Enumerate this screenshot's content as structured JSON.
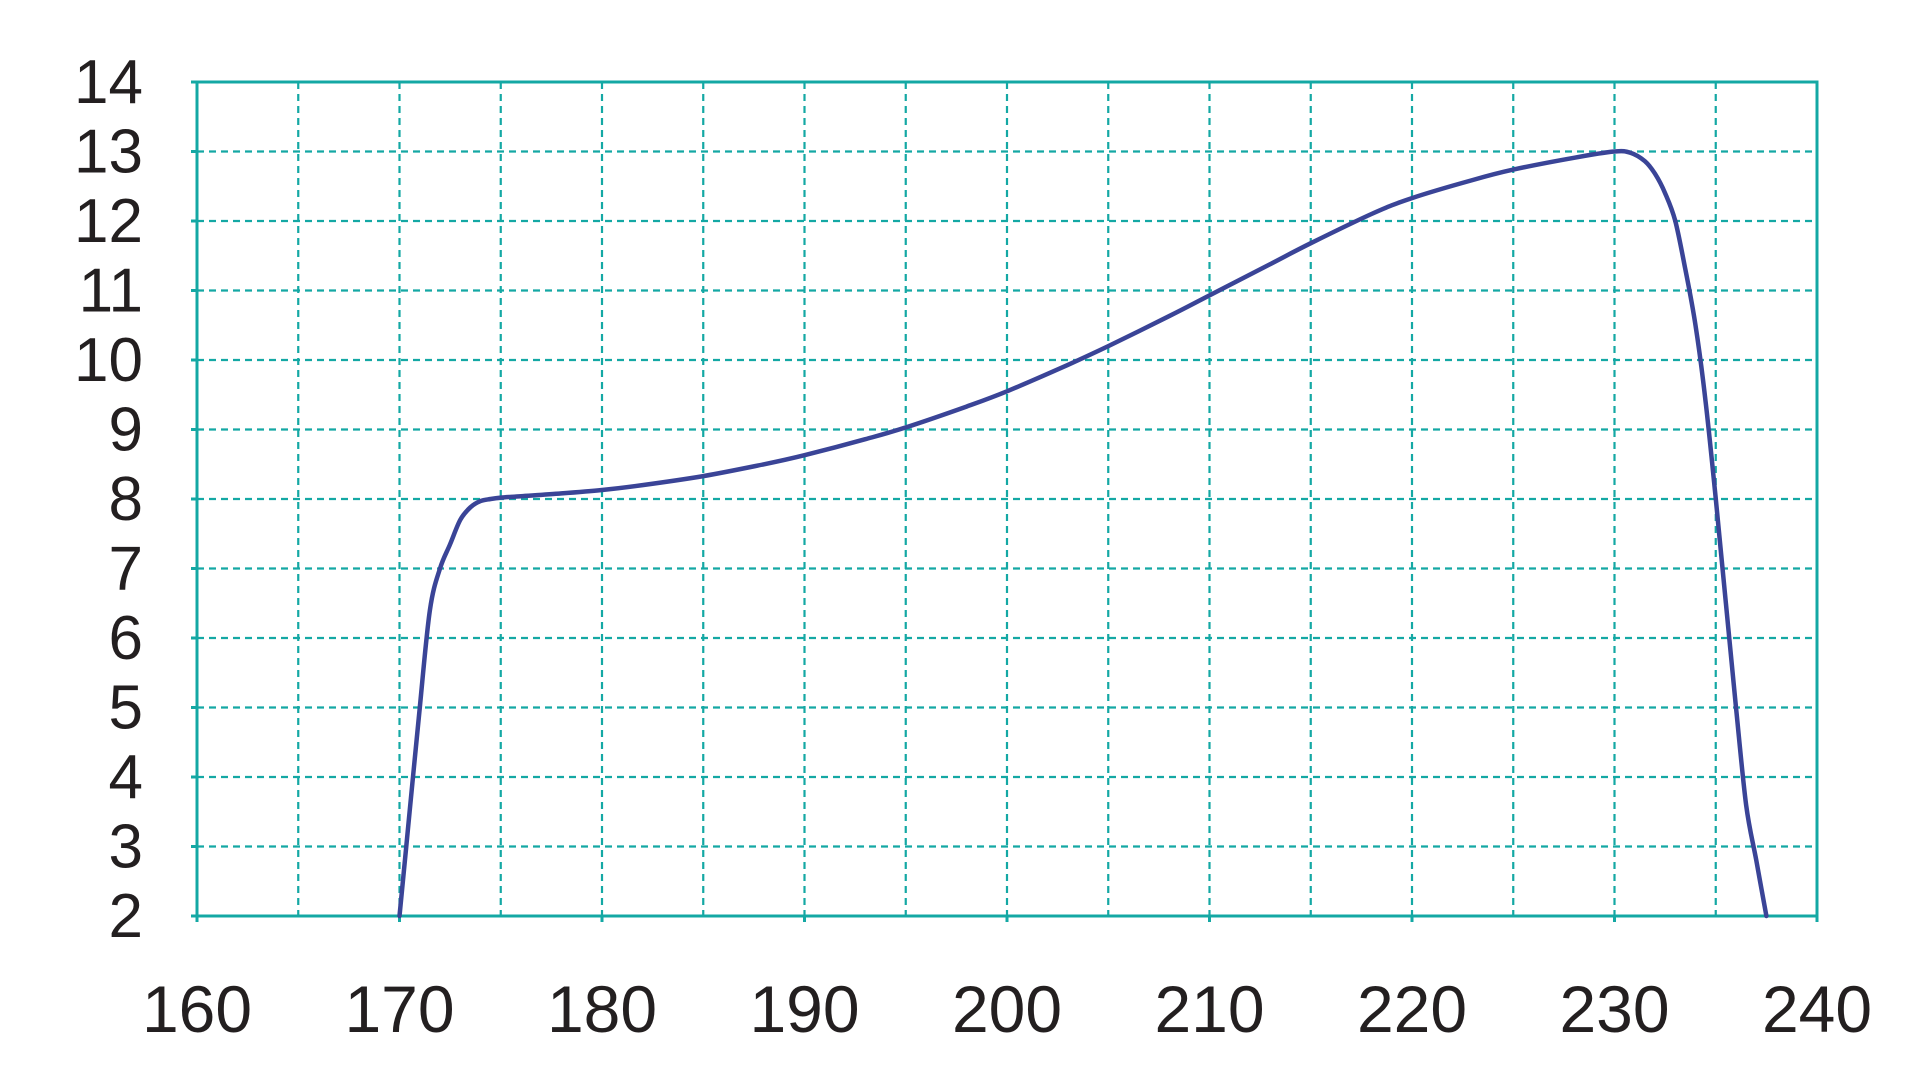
{
  "colors": {
    "background": "#ffffff",
    "frame": "#14a8a4",
    "grid": "#14a8a4",
    "line": "#3a4497",
    "text": "#231f20"
  },
  "chart_data": {
    "type": "line",
    "title": "",
    "xlabel": "",
    "ylabel": "",
    "xlim": [
      160,
      240
    ],
    "ylim": [
      2,
      14
    ],
    "grid": true,
    "grid_style": "dashed",
    "legend": "none",
    "x_ticks": [
      160,
      170,
      180,
      190,
      200,
      210,
      220,
      230,
      240
    ],
    "x_tick_labels": [
      "160",
      "170",
      "180",
      "190",
      "200",
      "210",
      "220",
      "230",
      "240"
    ],
    "x_minor_gridlines": [
      165,
      175,
      185,
      195,
      205,
      215,
      225,
      235
    ],
    "y_ticks": [
      2,
      3,
      4,
      5,
      6,
      7,
      8,
      9,
      10,
      11,
      12,
      13,
      14
    ],
    "y_tick_labels": [
      "2",
      "3",
      "4",
      "5",
      "6",
      "7",
      "8",
      "9",
      "10",
      "11",
      "12",
      "13",
      "14"
    ],
    "series": [
      {
        "x": [
          170,
          170.5,
          171,
          171.5,
          172,
          172.5,
          173,
          173.5,
          174,
          174.5,
          175,
          176,
          178,
          180,
          182,
          185,
          188,
          190,
          193,
          195,
          198,
          200,
          203,
          205,
          208,
          210,
          213,
          215,
          218,
          220,
          223,
          225,
          228,
          230,
          230.8,
          231.5,
          232,
          232.5,
          233,
          233.5,
          234,
          234.5,
          235,
          235.5,
          236,
          236.5,
          237,
          237.5
        ],
        "y": [
          2.0,
          3.5,
          5.0,
          6.4,
          7.0,
          7.35,
          7.7,
          7.88,
          7.97,
          8.0,
          8.02,
          8.04,
          8.08,
          8.13,
          8.2,
          8.33,
          8.5,
          8.63,
          8.86,
          9.03,
          9.33,
          9.55,
          9.93,
          10.2,
          10.63,
          10.93,
          11.38,
          11.68,
          12.1,
          12.33,
          12.59,
          12.74,
          12.91,
          13.0,
          12.98,
          12.86,
          12.68,
          12.4,
          12.0,
          11.3,
          10.5,
          9.4,
          8.0,
          6.5,
          5.0,
          3.6,
          2.8,
          2.0
        ]
      }
    ]
  }
}
